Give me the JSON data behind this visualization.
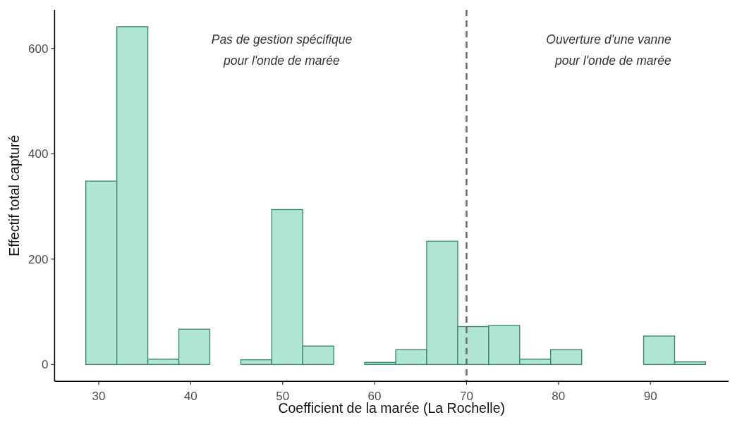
{
  "chart_data": {
    "type": "histogram",
    "xlabel": "Coefficient de la marée (La Rochelle)",
    "ylabel": "Effectif total capturé",
    "bins": [
      28.6,
      31.97,
      35.34,
      38.71,
      42.08,
      45.45,
      48.82,
      52.19,
      55.56,
      58.93,
      62.3,
      65.67,
      69.04,
      72.41,
      75.78,
      79.15,
      82.52,
      85.89,
      89.26,
      92.63,
      96.0
    ],
    "values": [
      348,
      641,
      10,
      67,
      0,
      9,
      294,
      35,
      0,
      4,
      28,
      234,
      72,
      74,
      10,
      28,
      0,
      0,
      54,
      5
    ],
    "color": "#b1e6d3",
    "xlim": [
      25.2,
      98.5
    ],
    "xticks": [
      30,
      40,
      50,
      60,
      70,
      80,
      90
    ],
    "ylim": [
      -32,
      673
    ],
    "yticks": [
      0,
      200,
      400,
      600
    ],
    "ref_lines": [
      {
        "axis": "x",
        "value": 70,
        "color": "#6e6e6e",
        "line_style": "dashed"
      }
    ],
    "annotations": [
      "Pas de gestion spécifique\npour l'onde de marée",
      "Ouverture d'une vanne\npour l'onde de marée"
    ]
  }
}
